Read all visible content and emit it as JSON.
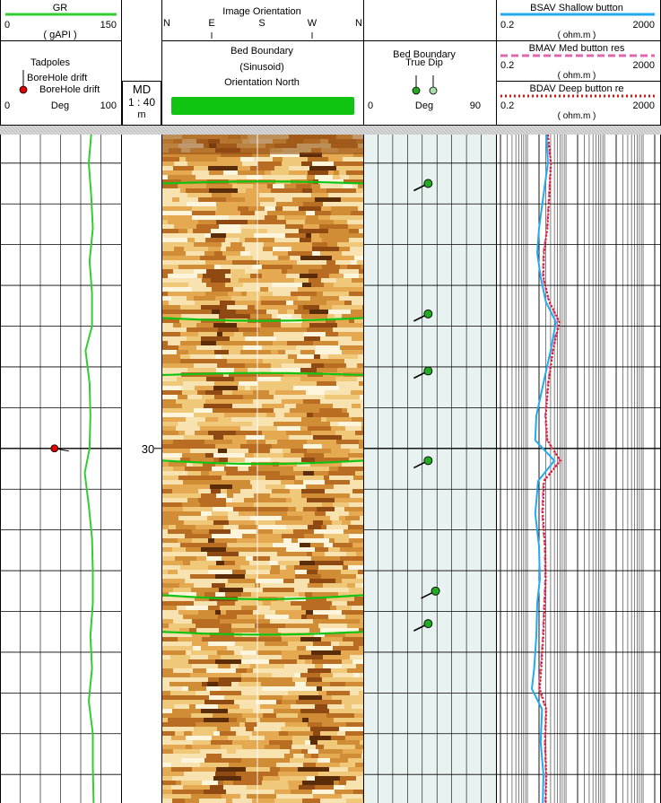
{
  "header": {
    "gr": {
      "name": "GR",
      "min": "0",
      "max": "150",
      "unit": "( gAPI )",
      "color": "#33cc33"
    },
    "tadpoles": {
      "title": "Tadpoles",
      "legend_a": "BoreHole drift",
      "legend_b": "BoreHole drift",
      "min": "0",
      "unit": "Deg",
      "max": "100",
      "color": "#dd0000"
    },
    "md": {
      "line1": "MD",
      "line2": "1 : 40",
      "line3": "m"
    },
    "image": {
      "title": "Image Orientation",
      "n1": "N",
      "e": "E",
      "s": "S",
      "w": "W",
      "n2": "N",
      "tick_e": "I",
      "tick_w": "I"
    },
    "bed": {
      "line1": "Bed Boundary",
      "line2": "(Sinusoid)",
      "line3": "Orientation North",
      "color": "#11c411"
    },
    "dip": {
      "title1": "Bed Boundary",
      "title2": "True Dip",
      "min": "0",
      "unit": "Deg",
      "max": "90",
      "color": "#22aa22"
    },
    "res": [
      {
        "name": "BSAV Shallow button",
        "min": "0.2",
        "max": "2000",
        "unit": "( ohm.m )",
        "color": "#22aaee",
        "style": "solid"
      },
      {
        "name": "BMAV Med button res",
        "min": "0.2",
        "max": "2000",
        "unit": "( ohm.m )",
        "color": "#e066b0",
        "style": "dashed"
      },
      {
        "name": "BDAV Deep button re",
        "min": "0.2",
        "max": "2000",
        "unit": "( ohm.m )",
        "color": "#dd1111",
        "style": "dotted"
      }
    ]
  },
  "depth_label": "30",
  "chart_data": {
    "type": "well-log",
    "md_top": 26.15,
    "md_bottom": 34.35,
    "gr": {
      "md": [
        26.15,
        26.5,
        26.9,
        27.3,
        27.7,
        28.1,
        28.5,
        28.8,
        29.2,
        29.6,
        30.0,
        30.3,
        30.7,
        31.1,
        31.5,
        31.9,
        32.3,
        32.7,
        33.1,
        33.5,
        33.9,
        34.35
      ],
      "gAPI": [
        113,
        110,
        113,
        115,
        111,
        114,
        114,
        106,
        111,
        112,
        111,
        105,
        110,
        114,
        115,
        115,
        112,
        114,
        110,
        115,
        115,
        116
      ]
    },
    "drift": [
      {
        "md": 30.0,
        "deg": 45
      }
    ],
    "bed_boundaries": [
      {
        "md": 26.75,
        "amplitude": 0.05,
        "phase": "up"
      },
      {
        "md": 28.4,
        "amplitude": 0.07,
        "phase": "down"
      },
      {
        "md": 29.1,
        "amplitude": 0.05,
        "phase": "up"
      },
      {
        "md": 30.15,
        "amplitude": 0.08,
        "phase": "down"
      },
      {
        "md": 31.8,
        "amplitude": 0.1,
        "phase": "down"
      },
      {
        "md": 32.25,
        "amplitude": 0.07,
        "phase": "down"
      }
    ],
    "true_dip": [
      {
        "md": 26.75,
        "dip": 44,
        "azimuth": "SW"
      },
      {
        "md": 28.35,
        "dip": 44,
        "azimuth": "SW"
      },
      {
        "md": 29.05,
        "dip": 44,
        "azimuth": "SW"
      },
      {
        "md": 30.15,
        "dip": 44,
        "azimuth": "SW"
      },
      {
        "md": 31.75,
        "dip": 49,
        "azimuth": "SW"
      },
      {
        "md": 32.15,
        "dip": 44,
        "azimuth": "SW"
      }
    ],
    "resistivity": {
      "md": [
        26.15,
        26.5,
        26.9,
        27.3,
        27.6,
        27.9,
        28.2,
        28.45,
        28.8,
        29.2,
        29.6,
        29.9,
        30.15,
        30.4,
        30.8,
        31.2,
        31.6,
        31.9,
        32.3,
        32.7,
        32.95,
        33.2,
        33.6,
        34.0,
        34.35
      ],
      "shallow": [
        3.1,
        3.4,
        2.6,
        2.0,
        1.8,
        2.2,
        3.0,
        5.5,
        4.0,
        2.6,
        1.7,
        1.6,
        5.0,
        1.9,
        1.6,
        2.0,
        2.1,
        1.8,
        1.7,
        1.5,
        1.3,
        2.4,
        2.2,
        2.6,
        2.5
      ],
      "medium": [
        3.3,
        4.0,
        3.6,
        3.2,
        2.6,
        2.5,
        3.6,
        6.5,
        4.5,
        3.4,
        2.9,
        3.2,
        7.0,
        2.6,
        2.4,
        2.8,
        2.9,
        2.7,
        2.5,
        2.2,
        2.0,
        3.0,
        2.8,
        3.0,
        2.9
      ],
      "deep": [
        3.4,
        4.1,
        3.7,
        3.3,
        2.7,
        2.6,
        3.7,
        6.8,
        4.6,
        3.5,
        3.0,
        3.3,
        7.2,
        2.7,
        2.5,
        2.9,
        3.0,
        2.8,
        2.6,
        2.3,
        2.1,
        3.1,
        2.9,
        3.1,
        3.0
      ],
      "scale": "log",
      "range": [
        0.2,
        2000
      ]
    }
  }
}
